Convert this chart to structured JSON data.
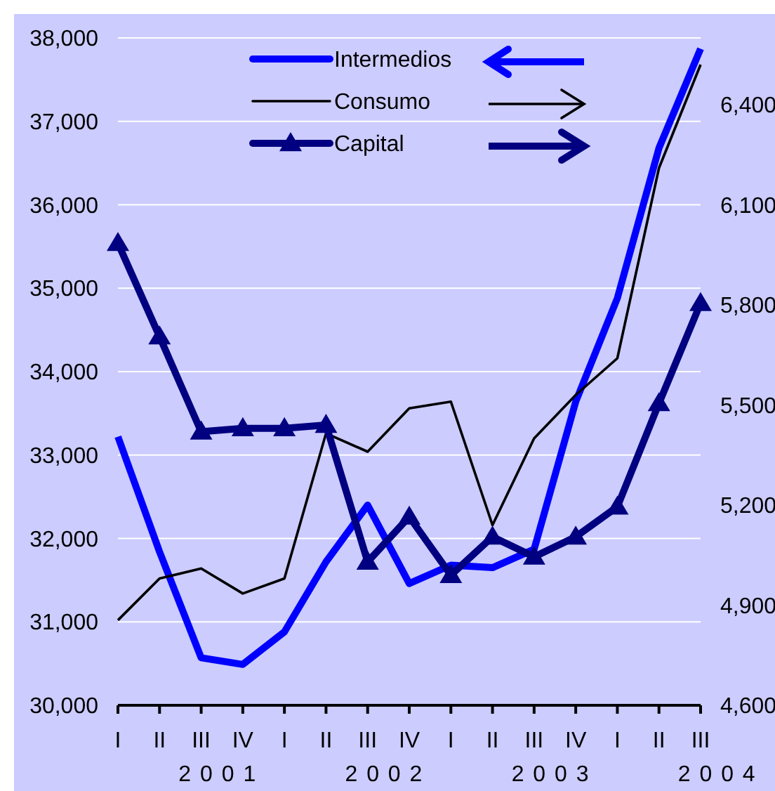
{
  "chart_data": {
    "type": "line",
    "categories": [
      "I",
      "II",
      "III",
      "IV",
      "I",
      "II",
      "III",
      "IV",
      "I",
      "II",
      "III",
      "IV",
      "I",
      "II",
      "III"
    ],
    "series": [
      {
        "name": "Intermedios",
        "color": "#0000ff",
        "marker": "none",
        "values": [
          33220,
          31840,
          30570,
          30490,
          30880,
          31720,
          32400,
          31460,
          31680,
          31650,
          31870,
          33640,
          34880,
          36680,
          37870
        ]
      },
      {
        "name": "Consumo",
        "color": "#000000",
        "marker": "none",
        "axis": "y2",
        "values": [
          4855,
          4980,
          5010,
          4935,
          4980,
          5415,
          5360,
          5490,
          5510,
          5140,
          5400,
          5530,
          5640,
          6210,
          6520
        ]
      },
      {
        "name": "Capital",
        "color": "#000080",
        "marker": "triangle",
        "axis": "y2",
        "values": [
          5985,
          5705,
          5420,
          5430,
          5430,
          5440,
          5030,
          5165,
          4990,
          5105,
          5045,
          5105,
          5195,
          5505,
          5805
        ]
      }
    ],
    "ylim": [
      30000,
      38000
    ],
    "yticks": [
      {
        "value": 30000,
        "label": "30,000"
      },
      {
        "value": 31000,
        "label": "31,000"
      },
      {
        "value": 32000,
        "label": "32,000"
      },
      {
        "value": 33000,
        "label": "33,000"
      },
      {
        "value": 34000,
        "label": "34,000"
      },
      {
        "value": 35000,
        "label": "35,000"
      },
      {
        "value": 36000,
        "label": "36,000"
      },
      {
        "value": 37000,
        "label": "37,000"
      },
      {
        "value": 38000,
        "label": "38,000"
      }
    ],
    "y2lim": [
      4600,
      6600
    ],
    "y2ticks": [
      {
        "value": 4600,
        "label": "4,600"
      },
      {
        "value": 4900,
        "label": "4,900"
      },
      {
        "value": 5200,
        "label": "5,200"
      },
      {
        "value": 5500,
        "label": "5,500"
      },
      {
        "value": 5800,
        "label": "5,800"
      },
      {
        "value": 6100,
        "label": "6,100"
      },
      {
        "value": 6400,
        "label": "6,400"
      }
    ],
    "annotations": [
      "2 0 0 1",
      "2 0 0 2",
      "2 0 0 3",
      "2 0 0 4"
    ],
    "grid": "y",
    "legend": "top"
  }
}
